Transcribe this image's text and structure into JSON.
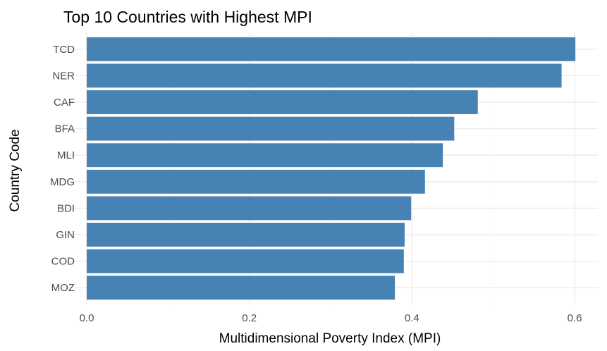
{
  "chart_data": {
    "type": "bar",
    "orientation": "horizontal",
    "title": "Top 10 Countries with Highest MPI",
    "xlabel": "Multidimensional Poverty Index (MPI)",
    "ylabel": "Country Code",
    "categories": [
      "TCD",
      "NER",
      "CAF",
      "BFA",
      "MLI",
      "MDG",
      "BDI",
      "GIN",
      "COD",
      "MOZ"
    ],
    "values": [
      0.601,
      0.584,
      0.481,
      0.452,
      0.438,
      0.416,
      0.399,
      0.391,
      0.39,
      0.379
    ],
    "xlim": [
      0,
      0.6
    ],
    "xticks": [
      "0.0",
      "0.2",
      "0.4",
      "0.6"
    ],
    "grid": true,
    "bar_color": "#4682b4"
  }
}
